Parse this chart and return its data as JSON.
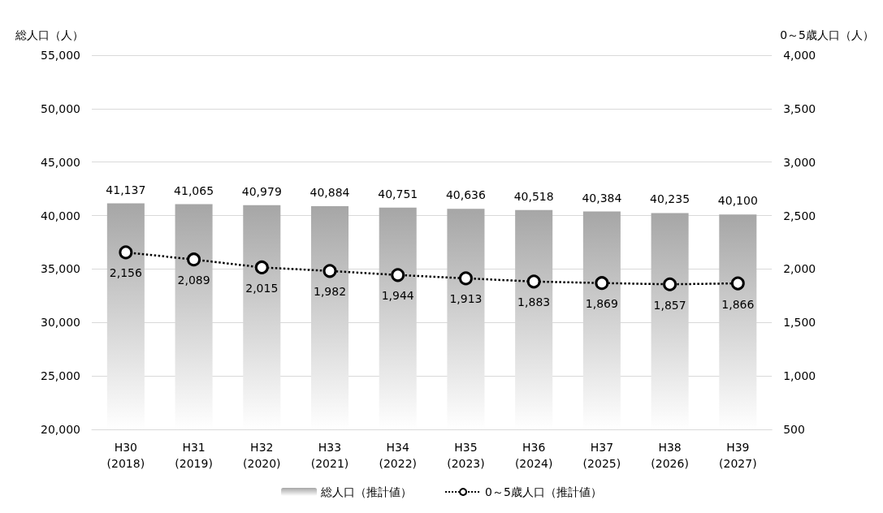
{
  "chart_data": {
    "type": "bar",
    "ylabel": "総人口（人）",
    "y2label": "0～5歳人口（人）",
    "categories": [
      "H30\n(2018)",
      "H31\n(2019)",
      "H32\n(2020)",
      "H33\n(2021)",
      "H34\n(2022)",
      "H35\n(2023)",
      "H36\n(2024)",
      "H37\n(2025)",
      "H38\n(2026)",
      "H39\n(2027)"
    ],
    "series": [
      {
        "name": "総人口（推計値）",
        "color": "#a6a6a6",
        "values": [
          41137,
          41065,
          40979,
          40884,
          40751,
          40636,
          40518,
          40384,
          40235,
          40100
        ],
        "value_labels": [
          "41,137",
          "41,065",
          "40,979",
          "40,884",
          "40,751",
          "40,636",
          "40,518",
          "40,384",
          "40,235",
          "40,100"
        ]
      },
      {
        "name": "0～5歳人口（推計値）",
        "type": "line",
        "axis": "y2",
        "color": "#000000",
        "marker": "circle",
        "line_style": "dotted",
        "values": [
          2156,
          2089,
          2015,
          1982,
          1944,
          1913,
          1883,
          1869,
          1857,
          1866
        ],
        "value_labels": [
          "2,156",
          "2,089",
          "2,015",
          "1,982",
          "1,944",
          "1,913",
          "1,883",
          "1,869",
          "1,857",
          "1,866"
        ]
      }
    ],
    "ylim": [
      20000,
      55000
    ],
    "yticks": [
      {
        "value": 20000,
        "label": "20,000"
      },
      {
        "value": 25000,
        "label": "25,000"
      },
      {
        "value": 30000,
        "label": "30,000"
      },
      {
        "value": 35000,
        "label": "35,000"
      },
      {
        "value": 40000,
        "label": "40,000"
      },
      {
        "value": 45000,
        "label": "45,000"
      },
      {
        "value": 50000,
        "label": "50,000"
      },
      {
        "value": 55000,
        "label": "55,000"
      }
    ],
    "y2lim": [
      500,
      4000
    ],
    "y2ticks": [
      {
        "value": 500,
        "label": "500"
      },
      {
        "value": 1000,
        "label": "1,000"
      },
      {
        "value": 1500,
        "label": "1,500"
      },
      {
        "value": 2000,
        "label": "2,000"
      },
      {
        "value": 2500,
        "label": "2,500"
      },
      {
        "value": 3000,
        "label": "3,000"
      },
      {
        "value": 3500,
        "label": "3,500"
      },
      {
        "value": 4000,
        "label": "4,000"
      }
    ],
    "grid": "y",
    "legend": "bottom"
  }
}
